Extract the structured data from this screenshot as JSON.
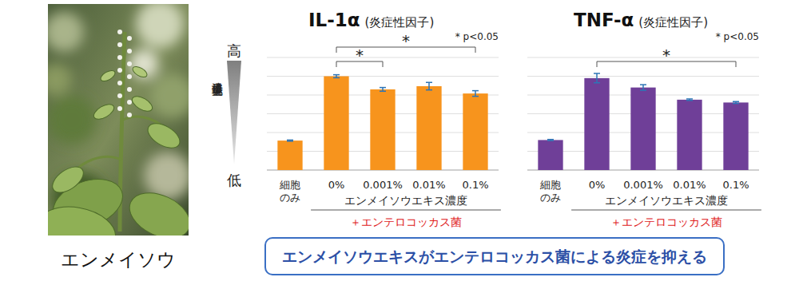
{
  "photo_label": "エンメイソウ",
  "y_axis": {
    "label": "遺伝子発現量",
    "high": "高",
    "low": "低"
  },
  "caption": "エンメイソウエキスがエンテロコッカス菌による炎症を抑える",
  "chart_data": [
    {
      "type": "bar",
      "title": "IL-1α",
      "subtitle": "(炎症性因子)",
      "categories": [
        "細胞\nのみ",
        "0%",
        "0.001%",
        "0.01%",
        "0.1%"
      ],
      "values": [
        1.57,
        5.0,
        4.3,
        4.47,
        4.08
      ],
      "errors": [
        0.03,
        0.08,
        0.1,
        0.2,
        0.15
      ],
      "color": "#f7941d",
      "ylim": [
        0,
        6
      ],
      "yticks": [
        0,
        1,
        2,
        3,
        4,
        5,
        6
      ],
      "grid": true,
      "tick_labels": "x",
      "x_group_label": "エンメイソウエキス濃度",
      "condition_label": "＋エンテロコッカス菌",
      "significance_note": "* p<0.05",
      "significance": [
        {
          "from": "0%",
          "to": "0.1%",
          "label": "*"
        },
        {
          "from": "0%",
          "to": "0.001%",
          "label": "*"
        }
      ]
    },
    {
      "type": "bar",
      "title": "TNF-α",
      "subtitle": "(炎症性因子)",
      "categories": [
        "細胞\nのみ",
        "0%",
        "0.001%",
        "0.01%",
        "0.1%"
      ],
      "values": [
        1.6,
        4.9,
        4.4,
        3.75,
        3.6
      ],
      "errors": [
        0.03,
        0.25,
        0.15,
        0.04,
        0.05
      ],
      "color": "#6f3f98",
      "ylim": [
        0,
        6
      ],
      "yticks": [
        0,
        1,
        2,
        3,
        4,
        5,
        6
      ],
      "grid": true,
      "tick_labels": "x",
      "x_group_label": "エンメイソウエキス濃度",
      "condition_label": "＋エンテロコッカス菌",
      "significance_note": "* p<0.05",
      "significance": [
        {
          "from": "0%",
          "to": "0.1%",
          "label": "*"
        }
      ]
    }
  ]
}
